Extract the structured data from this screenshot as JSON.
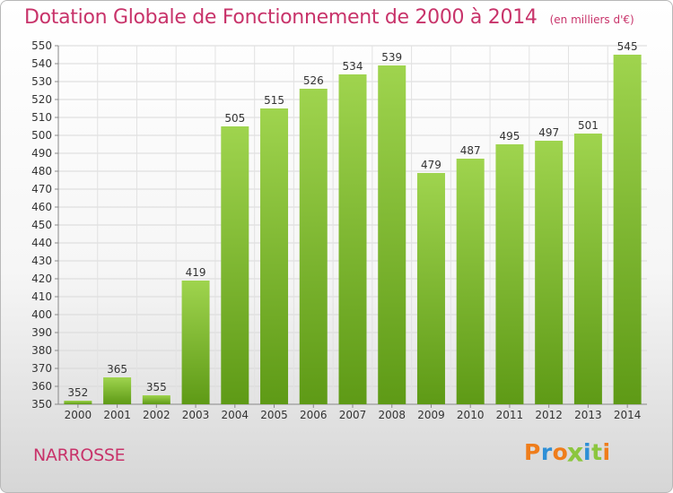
{
  "chart_data": {
    "type": "bar",
    "title": "Dotation Globale de Fonctionnement de 2000 à 2014",
    "unit_label": "(en milliers d'€)",
    "categories": [
      "2000",
      "2001",
      "2002",
      "2003",
      "2004",
      "2005",
      "2006",
      "2007",
      "2008",
      "2009",
      "2010",
      "2011",
      "2012",
      "2013",
      "2014"
    ],
    "values": [
      352,
      365,
      355,
      419,
      505,
      515,
      526,
      534,
      539,
      479,
      487,
      495,
      497,
      501,
      545
    ],
    "ylim": [
      350,
      550
    ],
    "ytick_step": 10,
    "grid": true,
    "bar_color_top": "#9fd44e",
    "bar_color_bottom": "#5e9a16"
  },
  "footer": {
    "place_name": "NARROSSE",
    "brand": "Proxiti"
  },
  "colors": {
    "title": "#c8336a",
    "brand_letters": [
      "#ef7d1b",
      "#2e8fd6",
      "#ef7d1b",
      "#8cc63f",
      "#2e8fd6",
      "#8cc63f",
      "#ef7d1b"
    ]
  }
}
